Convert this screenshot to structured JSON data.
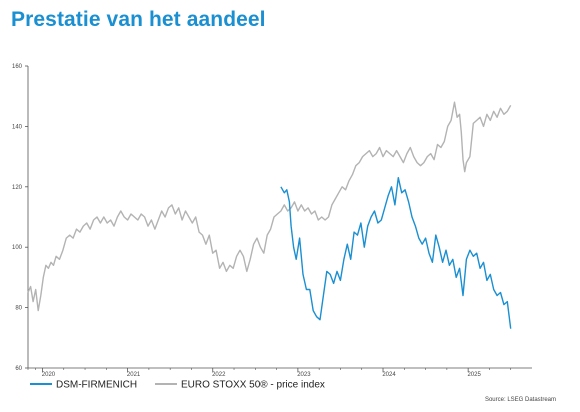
{
  "title": "Prestatie van het aandeel",
  "source": "Source: LSEG Datastream",
  "chart_data": {
    "type": "line",
    "title": "Prestatie van het aandeel",
    "xlabel": "",
    "ylabel": "",
    "ylim": [
      60,
      160
    ],
    "xlim": [
      2019.83,
      2025.75
    ],
    "y_ticks": [
      60,
      80,
      100,
      120,
      140,
      160
    ],
    "x_ticks": [
      {
        "label": "2020",
        "pos": 2020.0
      },
      {
        "label": "2021",
        "pos": 2021.0
      },
      {
        "label": "2022",
        "pos": 2022.0
      },
      {
        "label": "2023",
        "pos": 2023.0
      },
      {
        "label": "2024",
        "pos": 2024.0
      },
      {
        "label": "2025",
        "pos": 2025.0
      }
    ],
    "grid": false,
    "legend": "bottom-left",
    "series": [
      {
        "name": "DSM-FIRMENICH",
        "color": "#1a8fd1",
        "points": [
          [
            2022.8,
            120
          ],
          [
            2022.84,
            118
          ],
          [
            2022.87,
            119
          ],
          [
            2022.9,
            115
          ],
          [
            2022.92,
            107
          ],
          [
            2022.95,
            100
          ],
          [
            2022.98,
            96
          ],
          [
            2023.02,
            103
          ],
          [
            2023.06,
            91
          ],
          [
            2023.1,
            86
          ],
          [
            2023.14,
            86
          ],
          [
            2023.18,
            79
          ],
          [
            2023.22,
            77
          ],
          [
            2023.26,
            76
          ],
          [
            2023.3,
            84
          ],
          [
            2023.34,
            92
          ],
          [
            2023.38,
            91
          ],
          [
            2023.42,
            88
          ],
          [
            2023.46,
            92
          ],
          [
            2023.5,
            89
          ],
          [
            2023.54,
            96
          ],
          [
            2023.58,
            101
          ],
          [
            2023.62,
            96
          ],
          [
            2023.66,
            105
          ],
          [
            2023.7,
            104
          ],
          [
            2023.74,
            108
          ],
          [
            2023.78,
            100
          ],
          [
            2023.82,
            107
          ],
          [
            2023.86,
            110
          ],
          [
            2023.9,
            112
          ],
          [
            2023.94,
            108
          ],
          [
            2023.98,
            109
          ],
          [
            2024.02,
            113
          ],
          [
            2024.06,
            117
          ],
          [
            2024.1,
            120
          ],
          [
            2024.14,
            114
          ],
          [
            2024.18,
            123
          ],
          [
            2024.22,
            118
          ],
          [
            2024.26,
            119
          ],
          [
            2024.3,
            115
          ],
          [
            2024.34,
            110
          ],
          [
            2024.38,
            107
          ],
          [
            2024.42,
            103
          ],
          [
            2024.46,
            101
          ],
          [
            2024.5,
            103
          ],
          [
            2024.54,
            98
          ],
          [
            2024.58,
            95
          ],
          [
            2024.62,
            104
          ],
          [
            2024.66,
            100
          ],
          [
            2024.7,
            95
          ],
          [
            2024.74,
            99
          ],
          [
            2024.78,
            94
          ],
          [
            2024.82,
            96
          ],
          [
            2024.86,
            90
          ],
          [
            2024.9,
            93
          ],
          [
            2024.94,
            84
          ],
          [
            2024.98,
            96
          ],
          [
            2025.02,
            99
          ],
          [
            2025.06,
            97
          ],
          [
            2025.1,
            98
          ],
          [
            2025.14,
            93
          ],
          [
            2025.18,
            95
          ],
          [
            2025.22,
            89
          ],
          [
            2025.26,
            91
          ],
          [
            2025.3,
            86
          ],
          [
            2025.34,
            84
          ],
          [
            2025.38,
            85
          ],
          [
            2025.42,
            81
          ],
          [
            2025.46,
            82
          ],
          [
            2025.5,
            73
          ]
        ]
      },
      {
        "name": "EURO STOXX 50® - price index",
        "color": "#b3b3b3",
        "points": [
          [
            2019.83,
            85
          ],
          [
            2019.86,
            87
          ],
          [
            2019.89,
            82
          ],
          [
            2019.92,
            86
          ],
          [
            2019.95,
            79
          ],
          [
            2019.98,
            84
          ],
          [
            2020.01,
            90
          ],
          [
            2020.04,
            94
          ],
          [
            2020.07,
            93
          ],
          [
            2020.1,
            95
          ],
          [
            2020.13,
            94
          ],
          [
            2020.16,
            97
          ],
          [
            2020.2,
            96
          ],
          [
            2020.24,
            99
          ],
          [
            2020.28,
            103
          ],
          [
            2020.32,
            104
          ],
          [
            2020.36,
            103
          ],
          [
            2020.4,
            106
          ],
          [
            2020.44,
            105
          ],
          [
            2020.48,
            107
          ],
          [
            2020.52,
            108
          ],
          [
            2020.56,
            106
          ],
          [
            2020.6,
            109
          ],
          [
            2020.64,
            110
          ],
          [
            2020.68,
            108
          ],
          [
            2020.72,
            110
          ],
          [
            2020.76,
            108
          ],
          [
            2020.8,
            109
          ],
          [
            2020.84,
            107
          ],
          [
            2020.88,
            110
          ],
          [
            2020.92,
            112
          ],
          [
            2020.96,
            110
          ],
          [
            2021.0,
            109
          ],
          [
            2021.04,
            111
          ],
          [
            2021.08,
            110
          ],
          [
            2021.12,
            109
          ],
          [
            2021.16,
            111
          ],
          [
            2021.2,
            110
          ],
          [
            2021.24,
            107
          ],
          [
            2021.28,
            109
          ],
          [
            2021.32,
            106
          ],
          [
            2021.36,
            109
          ],
          [
            2021.4,
            112
          ],
          [
            2021.44,
            110
          ],
          [
            2021.48,
            113
          ],
          [
            2021.52,
            114
          ],
          [
            2021.56,
            111
          ],
          [
            2021.6,
            113
          ],
          [
            2021.64,
            109
          ],
          [
            2021.68,
            112
          ],
          [
            2021.72,
            110
          ],
          [
            2021.76,
            108
          ],
          [
            2021.8,
            110
          ],
          [
            2021.84,
            105
          ],
          [
            2021.88,
            104
          ],
          [
            2021.92,
            101
          ],
          [
            2021.96,
            104
          ],
          [
            2022.0,
            98
          ],
          [
            2022.04,
            99
          ],
          [
            2022.08,
            93
          ],
          [
            2022.12,
            95
          ],
          [
            2022.16,
            92
          ],
          [
            2022.2,
            94
          ],
          [
            2022.24,
            93
          ],
          [
            2022.28,
            97
          ],
          [
            2022.32,
            99
          ],
          [
            2022.36,
            97
          ],
          [
            2022.4,
            92
          ],
          [
            2022.44,
            96
          ],
          [
            2022.48,
            101
          ],
          [
            2022.52,
            103
          ],
          [
            2022.56,
            100
          ],
          [
            2022.6,
            98
          ],
          [
            2022.64,
            104
          ],
          [
            2022.68,
            106
          ],
          [
            2022.72,
            110
          ],
          [
            2022.76,
            111
          ],
          [
            2022.8,
            112
          ],
          [
            2022.84,
            114
          ],
          [
            2022.88,
            112
          ],
          [
            2022.92,
            113
          ],
          [
            2022.96,
            115
          ],
          [
            2023.0,
            112
          ],
          [
            2023.04,
            114
          ],
          [
            2023.08,
            112
          ],
          [
            2023.12,
            113
          ],
          [
            2023.16,
            111
          ],
          [
            2023.2,
            112
          ],
          [
            2023.24,
            109
          ],
          [
            2023.28,
            110
          ],
          [
            2023.32,
            109
          ],
          [
            2023.36,
            110
          ],
          [
            2023.4,
            114
          ],
          [
            2023.44,
            116
          ],
          [
            2023.48,
            118
          ],
          [
            2023.52,
            120
          ],
          [
            2023.56,
            119
          ],
          [
            2023.6,
            122
          ],
          [
            2023.64,
            124
          ],
          [
            2023.68,
            127
          ],
          [
            2023.72,
            128
          ],
          [
            2023.76,
            130
          ],
          [
            2023.8,
            131
          ],
          [
            2023.84,
            132
          ],
          [
            2023.88,
            130
          ],
          [
            2023.92,
            131
          ],
          [
            2023.96,
            133
          ],
          [
            2024.0,
            130
          ],
          [
            2024.04,
            132
          ],
          [
            2024.08,
            131
          ],
          [
            2024.12,
            130
          ],
          [
            2024.16,
            132
          ],
          [
            2024.2,
            130
          ],
          [
            2024.24,
            128
          ],
          [
            2024.28,
            131
          ],
          [
            2024.32,
            133
          ],
          [
            2024.36,
            130
          ],
          [
            2024.4,
            128
          ],
          [
            2024.44,
            127
          ],
          [
            2024.48,
            128
          ],
          [
            2024.52,
            130
          ],
          [
            2024.56,
            131
          ],
          [
            2024.6,
            129
          ],
          [
            2024.64,
            134
          ],
          [
            2024.68,
            133
          ],
          [
            2024.72,
            135
          ],
          [
            2024.76,
            140
          ],
          [
            2024.8,
            142
          ],
          [
            2024.82,
            145
          ],
          [
            2024.84,
            148
          ],
          [
            2024.87,
            143
          ],
          [
            2024.9,
            144
          ],
          [
            2024.92,
            138
          ],
          [
            2024.94,
            129
          ],
          [
            2024.96,
            125
          ],
          [
            2024.98,
            128
          ],
          [
            2025.02,
            130
          ],
          [
            2025.06,
            141
          ],
          [
            2025.1,
            142
          ],
          [
            2025.14,
            143
          ],
          [
            2025.18,
            140
          ],
          [
            2025.22,
            144
          ],
          [
            2025.26,
            142
          ],
          [
            2025.3,
            145
          ],
          [
            2025.34,
            143
          ],
          [
            2025.38,
            146
          ],
          [
            2025.42,
            144
          ],
          [
            2025.46,
            145
          ],
          [
            2025.5,
            147
          ]
        ]
      }
    ]
  }
}
